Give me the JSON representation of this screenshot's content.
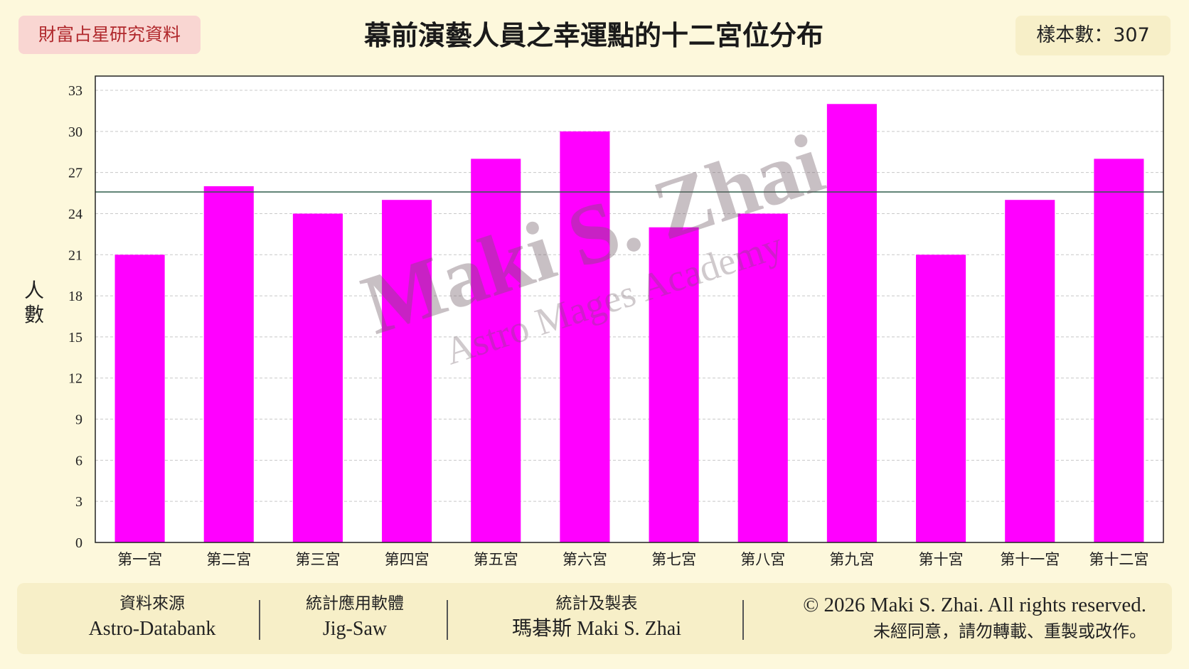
{
  "tag": "財富占星研究資料",
  "title": "幕前演藝人員之幸運點的十二宮位分布",
  "sample": "樣本數：307",
  "chart_data": {
    "type": "bar",
    "title": "幕前演藝人員之幸運點的十二宮位分布",
    "ylabel": "人數",
    "xlabel": "",
    "categories": [
      "第一宮",
      "第二宮",
      "第三宮",
      "第四宮",
      "第五宮",
      "第六宮",
      "第七宮",
      "第八宮",
      "第九宮",
      "第十宮",
      "第十一宮",
      "第十二宮"
    ],
    "values": [
      21,
      26,
      24,
      25,
      28,
      30,
      23,
      24,
      32,
      21,
      25,
      28
    ],
    "ylim": [
      0,
      33
    ],
    "yticks": [
      0,
      3,
      6,
      9,
      12,
      15,
      18,
      21,
      24,
      27,
      30,
      33
    ],
    "reference_line": 25.58,
    "grid": true,
    "bar_color": "#ff00ff",
    "reference_line_color": "#2f5d4a"
  },
  "watermark": {
    "line1": "Maki S. Zhai",
    "line2": "Astro Mages Academy"
  },
  "footer": {
    "source_label": "資料來源",
    "source_value": "Astro-Databank",
    "software_label": "統計應用軟體",
    "software_value": "Jig-Saw",
    "author_label": "統計及製表",
    "author_value": "瑪碁斯 Maki S. Zhai",
    "copyright": "© 2026 Maki S. Zhai. All rights reserved.",
    "notice": "未經同意，請勿轉載、重製或改作。"
  }
}
